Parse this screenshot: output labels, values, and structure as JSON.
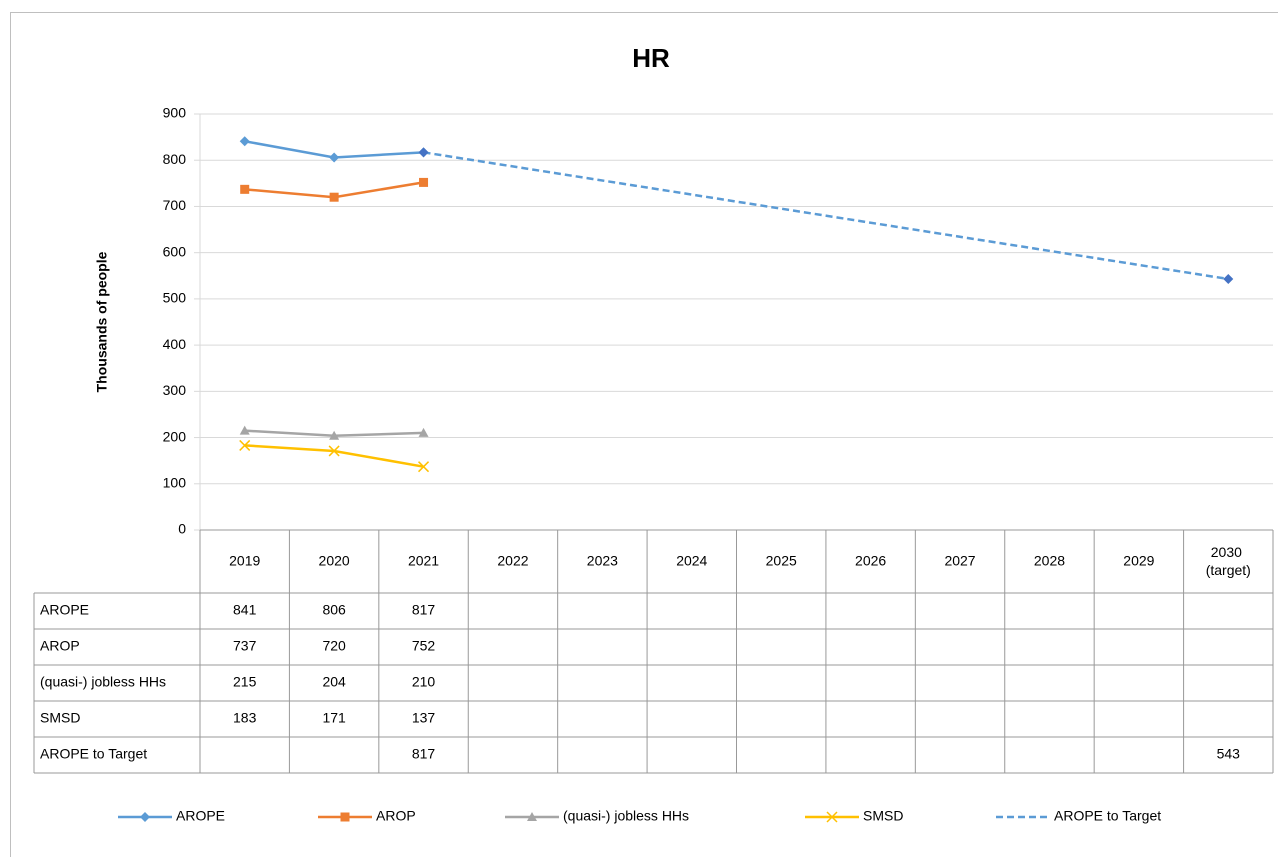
{
  "chart_data": {
    "type": "line",
    "title": "HR",
    "y_label": "Thousands of people",
    "categories": [
      "2019",
      "2020",
      "2021",
      "2022",
      "2023",
      "2024",
      "2025",
      "2026",
      "2027",
      "2028",
      "2029",
      "2030 (target)"
    ],
    "series": [
      {
        "name": "AROPE",
        "color": "#5b9bd5",
        "marker": "diamond",
        "values": [
          841,
          806,
          817,
          null,
          null,
          null,
          null,
          null,
          null,
          null,
          null,
          null
        ]
      },
      {
        "name": "AROP",
        "color": "#ed7d31",
        "marker": "square",
        "values": [
          737,
          720,
          752,
          null,
          null,
          null,
          null,
          null,
          null,
          null,
          null,
          null
        ]
      },
      {
        "name": "(quasi-) jobless HHs",
        "color": "#a5a5a5",
        "marker": "triangle",
        "values": [
          215,
          204,
          210,
          null,
          null,
          null,
          null,
          null,
          null,
          null,
          null,
          null
        ]
      },
      {
        "name": "SMSD",
        "color": "#ffc000",
        "marker": "x",
        "values": [
          183,
          171,
          137,
          null,
          null,
          null,
          null,
          null,
          null,
          null,
          null,
          null
        ]
      },
      {
        "name": "AROPE to Target",
        "color": "#5b9bd5",
        "marker": "diamond",
        "marker_color": "#4472c4",
        "dashed": true,
        "connect_gaps": true,
        "values": [
          null,
          null,
          817,
          null,
          null,
          null,
          null,
          null,
          null,
          null,
          null,
          543
        ]
      }
    ],
    "ylim": [
      0,
      900
    ],
    "yticks": [
      0,
      100,
      200,
      300,
      400,
      500,
      600,
      700,
      800,
      900
    ],
    "grid": true,
    "data_table": true,
    "legend": "bottom"
  }
}
